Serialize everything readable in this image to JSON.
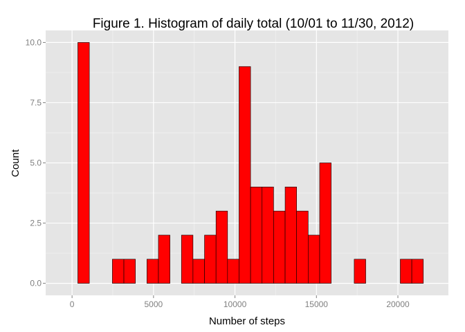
{
  "chart_data": {
    "type": "bar",
    "title": "Figure 1. Histogram of daily total (10/01 to 11/30, 2012)",
    "xlabel": "Number of steps",
    "ylabel": "Count",
    "xlim": [
      -1620,
      23100
    ],
    "ylim": [
      -0.5,
      10.5
    ],
    "x_ticks": [
      0,
      5000,
      10000,
      15000,
      20000
    ],
    "x_tick_labels": [
      "0",
      "5000",
      "10000",
      "15000",
      "20000"
    ],
    "y_ticks": [
      0,
      2.5,
      5,
      7.5,
      10
    ],
    "y_tick_labels": [
      "0.0",
      "2.5",
      "5.0",
      "7.5",
      "10.0"
    ],
    "grid": true,
    "bin_width": 706.9,
    "bin_centers": [
      0,
      706.9,
      1413.8,
      2120.7,
      2827.6,
      3534.5,
      4241.4,
      4948.3,
      5655.2,
      6362.1,
      7069,
      7775.9,
      8482.8,
      9189.7,
      9896.6,
      10603.4,
      11310.3,
      12017.2,
      12724.1,
      13431,
      14137.9,
      14844.8,
      15551.7,
      16258.6,
      16965.5,
      17672.4,
      18379.3,
      19086.2,
      19793.1,
      20500,
      21206.9
    ],
    "values": [
      0,
      10,
      0,
      0,
      1,
      1,
      0,
      1,
      2,
      0,
      2,
      1,
      2,
      3,
      1,
      9,
      4,
      4,
      3,
      4,
      3,
      2,
      5,
      0,
      0,
      1,
      0,
      0,
      0,
      1,
      1
    ],
    "colors": {
      "bar_fill": "#ff0000",
      "bar_stroke": "#000000",
      "panel_background": "#e5e5e5",
      "grid_major": "#ffffff",
      "grid_minor": "#f2f2f2"
    }
  }
}
